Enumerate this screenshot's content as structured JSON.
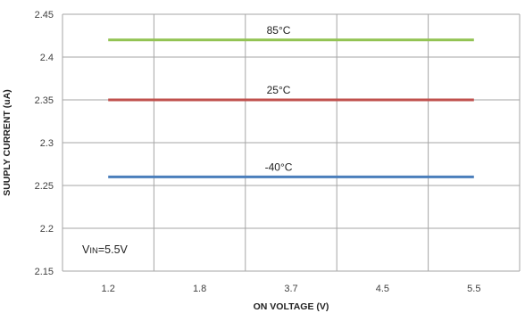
{
  "chart_data": {
    "type": "line",
    "xlabel": "ON VOLTAGE (V)",
    "ylabel": "SUUPLY CURRENT (uA)",
    "categories": [
      "1.2",
      "1.8",
      "3.7",
      "4.5",
      "5.5"
    ],
    "ylim": [
      2.15,
      2.45
    ],
    "yticks": [
      "2.15",
      "2.2",
      "2.25",
      "2.3",
      "2.35",
      "2.4",
      "2.45"
    ],
    "grid": true,
    "series": [
      {
        "name": "85°C",
        "color": "#92c353",
        "values": [
          2.42,
          2.42,
          2.42,
          2.42,
          2.42
        ]
      },
      {
        "name": "25°C",
        "color": "#c0504d",
        "values": [
          2.35,
          2.35,
          2.35,
          2.35,
          2.35
        ]
      },
      {
        "name": "-40°C",
        "color": "#4a7ebb",
        "values": [
          2.26,
          2.26,
          2.26,
          2.26,
          2.26
        ]
      }
    ],
    "annotation": {
      "prefix": "V",
      "subscript": "IN",
      "suffix": "=5.5V"
    }
  }
}
